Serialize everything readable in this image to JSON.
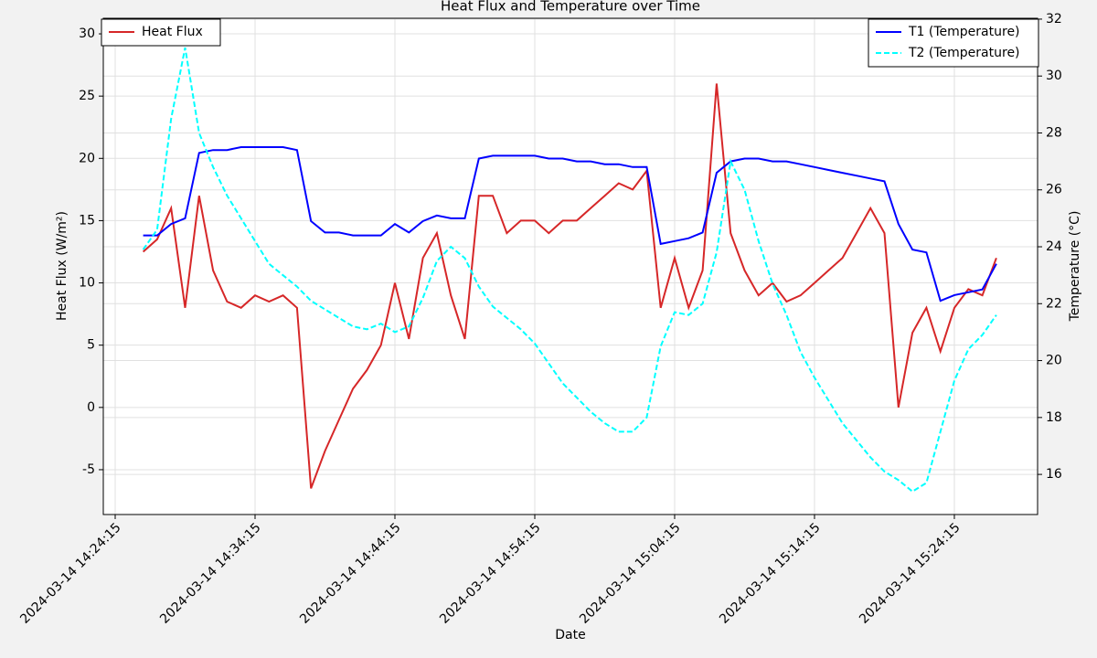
{
  "chart_data": {
    "type": "line",
    "title": "Heat Flux and Temperature over Time",
    "xlabel": "Date",
    "ylabel": "Heat Flux (W/m²)",
    "y2label": "Temperature (°C)",
    "x": [
      "2024-03-14 14:26:15",
      "2024-03-14 14:27:15",
      "2024-03-14 14:28:15",
      "2024-03-14 14:29:15",
      "2024-03-14 14:30:15",
      "2024-03-14 14:31:15",
      "2024-03-14 14:32:15",
      "2024-03-14 14:33:15",
      "2024-03-14 14:34:15",
      "2024-03-14 14:35:15",
      "2024-03-14 14:36:15",
      "2024-03-14 14:37:15",
      "2024-03-14 14:38:15",
      "2024-03-14 14:39:15",
      "2024-03-14 14:40:15",
      "2024-03-14 14:41:15",
      "2024-03-14 14:42:15",
      "2024-03-14 14:43:15",
      "2024-03-14 14:44:15",
      "2024-03-14 14:45:15",
      "2024-03-14 14:46:15",
      "2024-03-14 14:47:15",
      "2024-03-14 14:48:15",
      "2024-03-14 14:49:15",
      "2024-03-14 14:50:15",
      "2024-03-14 14:51:15",
      "2024-03-14 14:52:15",
      "2024-03-14 14:53:15",
      "2024-03-14 14:54:15",
      "2024-03-14 14:55:15",
      "2024-03-14 14:56:15",
      "2024-03-14 14:57:15",
      "2024-03-14 14:58:15",
      "2024-03-14 14:59:15",
      "2024-03-14 15:00:15",
      "2024-03-14 15:01:15",
      "2024-03-14 15:02:15",
      "2024-03-14 15:03:15",
      "2024-03-14 15:04:15",
      "2024-03-14 15:05:15",
      "2024-03-14 15:06:15",
      "2024-03-14 15:07:15",
      "2024-03-14 15:08:15",
      "2024-03-14 15:09:15",
      "2024-03-14 15:10:15",
      "2024-03-14 15:11:15",
      "2024-03-14 15:12:15",
      "2024-03-14 15:13:15",
      "2024-03-14 15:14:15",
      "2024-03-14 15:15:15",
      "2024-03-14 15:16:15",
      "2024-03-14 15:17:15",
      "2024-03-14 15:18:15",
      "2024-03-14 15:19:15",
      "2024-03-14 15:20:15",
      "2024-03-14 15:21:15",
      "2024-03-14 15:22:15",
      "2024-03-14 15:23:15",
      "2024-03-14 15:24:15",
      "2024-03-14 15:25:15",
      "2024-03-14 15:26:15",
      "2024-03-14 15:27:15"
    ],
    "series": [
      {
        "name": "Heat Flux",
        "color": "#d62728",
        "dash": false,
        "values": [
          12.5,
          13.5,
          16,
          8,
          17,
          11,
          8.5,
          8,
          9,
          8.5,
          9,
          8,
          -6.5,
          -3.5,
          -1,
          1.5,
          3,
          5,
          10,
          5.5,
          12,
          14,
          9,
          5.5,
          17,
          17,
          14,
          15,
          15,
          14,
          15,
          15,
          16,
          17,
          18,
          17.5,
          19,
          8,
          12,
          8,
          11,
          26,
          14,
          11,
          9,
          10,
          8.5,
          9,
          10,
          11,
          12,
          14,
          16,
          14,
          0,
          6,
          8,
          4.5,
          8,
          9.5,
          9,
          12
        ]
      },
      {
        "name": "T1 (Temperature)",
        "color": "#0000ff",
        "dash": false,
        "axis": "y2",
        "values": [
          24.4,
          24.4,
          24.8,
          25,
          27.3,
          27.4,
          27.4,
          27.5,
          27.5,
          27.5,
          27.5,
          27.4,
          24.9,
          24.5,
          24.5,
          24.4,
          24.4,
          24.4,
          24.8,
          24.5,
          24.9,
          25.1,
          25,
          25,
          27.1,
          27.2,
          27.2,
          27.2,
          27.2,
          27.1,
          27.1,
          27,
          27,
          26.9,
          26.9,
          26.8,
          26.8,
          24.1,
          24.2,
          24.3,
          24.5,
          26.6,
          27,
          27.1,
          27.1,
          27,
          27,
          26.9,
          26.8,
          26.7,
          26.6,
          26.5,
          26.4,
          26.3,
          24.8,
          23.9,
          23.8,
          22.1,
          22.3,
          22.4,
          22.5,
          23.4
        ]
      },
      {
        "name": "T2 (Temperature)",
        "color": "#00ffff",
        "dash": true,
        "axis": "y2",
        "values": [
          23.9,
          24.6,
          28.5,
          31,
          28,
          26.8,
          25.8,
          25,
          24.2,
          23.4,
          23,
          22.6,
          22.1,
          21.8,
          21.5,
          21.2,
          21.1,
          21.3,
          21,
          21.2,
          22.2,
          23.5,
          24,
          23.6,
          22.6,
          21.9,
          21.5,
          21.1,
          20.6,
          19.9,
          19.2,
          18.7,
          18.2,
          17.8,
          17.5,
          17.5,
          18,
          20.5,
          21.7,
          21.6,
          22,
          23.8,
          27,
          26,
          24.2,
          22.7,
          21.6,
          20.3,
          19.4,
          18.6,
          17.8,
          17.2,
          16.6,
          16.1,
          15.8,
          15.4,
          15.7,
          17.5,
          19.3,
          20.4,
          20.9,
          21.6
        ]
      }
    ],
    "xlim": [
      "2024-03-14 14:23:24",
      "2024-03-14 15:30:12"
    ],
    "xticks": [
      "2024-03-14 14:24:15",
      "2024-03-14 14:34:15",
      "2024-03-14 14:44:15",
      "2024-03-14 14:54:15",
      "2024-03-14 15:04:15",
      "2024-03-14 15:14:15",
      "2024-03-14 15:24:15"
    ],
    "ylim": [
      -8.6,
      31.25
    ],
    "yticks": [
      -5,
      0,
      5,
      10,
      15,
      20,
      25,
      30
    ],
    "y2lim": [
      14.59,
      32.03
    ],
    "y2ticks": [
      16,
      18,
      20,
      22,
      24,
      26,
      28,
      30,
      32
    ],
    "ycolor": "#d62728",
    "y2color": "#1f77b4",
    "grid": true,
    "legend_loc": "upper left",
    "y2_legend_loc": "upper right"
  }
}
